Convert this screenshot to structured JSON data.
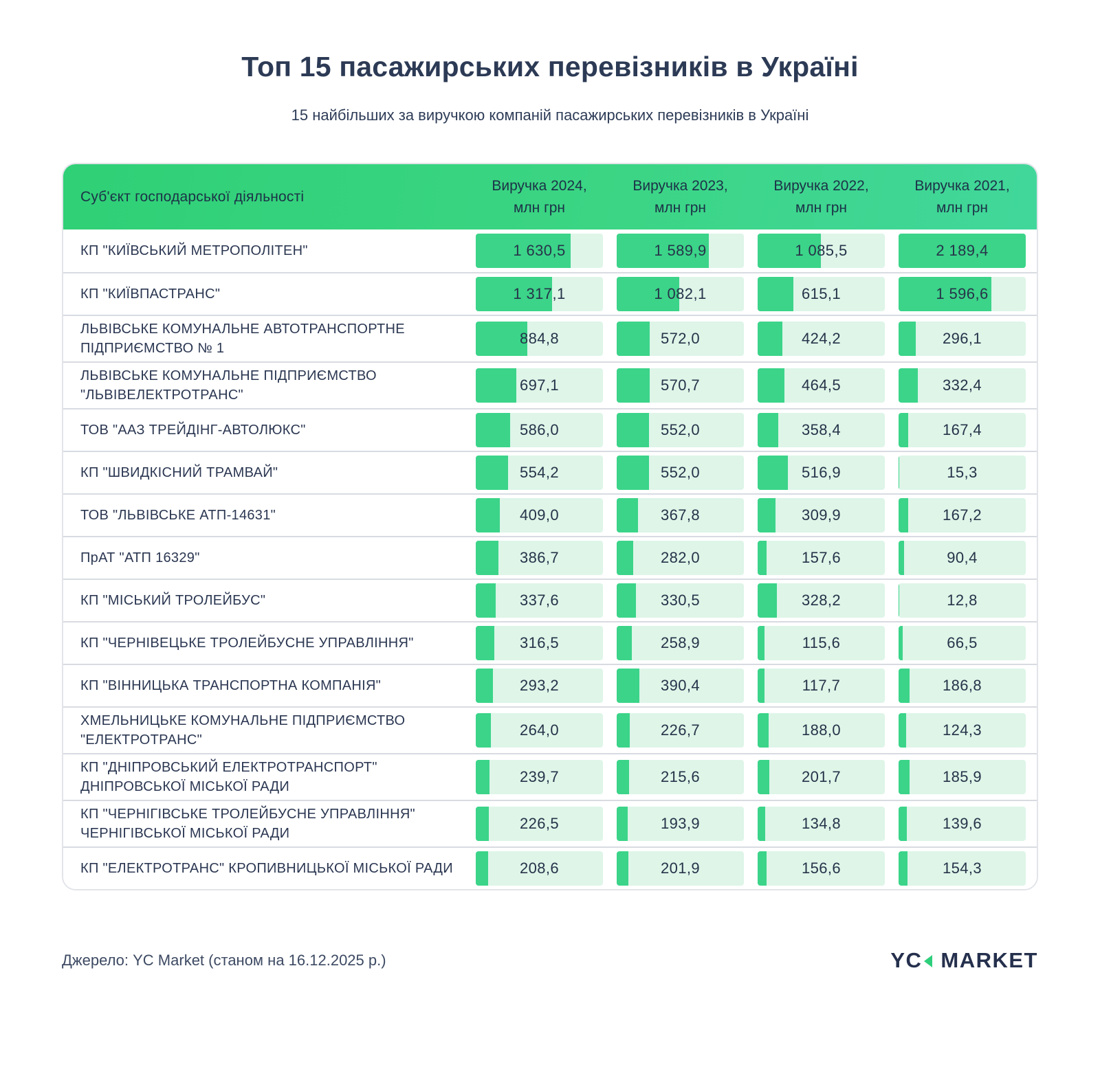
{
  "title": "Топ 15 пасажирських перевізників в Україні",
  "subtitle": "15 найбільших за виручкою компаній пасажирських перевізників в Україні",
  "table": {
    "name_header": "Суб'єкт господарської діяльності",
    "year_headers": [
      {
        "line1": "Виручка 2024,",
        "line2": "млн грн"
      },
      {
        "line1": "Виручка 2023,",
        "line2": "млн грн"
      },
      {
        "line1": "Виручка 2022,",
        "line2": "млн грн"
      },
      {
        "line1": "Виручка 2021,",
        "line2": "млн грн"
      }
    ]
  },
  "chart_data": {
    "type": "table",
    "title": "Топ 15 пасажирських перевізників в Україні",
    "subtitle": "15 найбільших за виручкою компаній пасажирських перевізників в Україні",
    "value_columns": [
      "Виручка 2024, млн грн",
      "Виручка 2023, млн грн",
      "Виручка 2022, млн грн",
      "Виручка 2021, млн грн"
    ],
    "bar_scale_max": 2189.4,
    "rows": [
      {
        "name": "КП \"КИЇВСЬКИЙ МЕТРОПОЛІТЕН\"",
        "values": [
          1630.5,
          1589.9,
          1085.5,
          2189.4
        ]
      },
      {
        "name": "КП \"КИЇВПАСТРАНС\"",
        "values": [
          1317.1,
          1082.1,
          615.1,
          1596.6
        ]
      },
      {
        "name": "ЛЬВІВСЬКЕ КОМУНАЛЬНЕ АВТОТРАНСПОРТНЕ ПІДПРИЄМСТВО № 1",
        "values": [
          884.8,
          572.0,
          424.2,
          296.1
        ]
      },
      {
        "name": "ЛЬВІВСЬКЕ КОМУНАЛЬНЕ ПІДПРИЄМСТВО \"ЛЬВІВЕЛЕКТРОТРАНС\"",
        "values": [
          697.1,
          570.7,
          464.5,
          332.4
        ]
      },
      {
        "name": "ТОВ \"ААЗ ТРЕЙДІНГ-АВТОЛЮКС\"",
        "values": [
          586.0,
          552.0,
          358.4,
          167.4
        ]
      },
      {
        "name": "КП \"ШВИДКІСНИЙ ТРАМВАЙ\"",
        "values": [
          554.2,
          552.0,
          516.9,
          15.3
        ]
      },
      {
        "name": "ТОВ \"ЛЬВІВСЬКЕ АТП-14631\"",
        "values": [
          409.0,
          367.8,
          309.9,
          167.2
        ]
      },
      {
        "name": "ПрАТ \"АТП 16329\"",
        "values": [
          386.7,
          282.0,
          157.6,
          90.4
        ]
      },
      {
        "name": "КП \"МІСЬКИЙ ТРОЛЕЙБУС\"",
        "values": [
          337.6,
          330.5,
          328.2,
          12.8
        ]
      },
      {
        "name": "КП \"ЧЕРНІВЕЦЬКЕ ТРОЛЕЙБУСНЕ УПРАВЛІННЯ\"",
        "values": [
          316.5,
          258.9,
          115.6,
          66.5
        ]
      },
      {
        "name": "КП \"ВІННИЦЬКА ТРАНСПОРТНА КОМПАНІЯ\"",
        "values": [
          293.2,
          390.4,
          117.7,
          186.8
        ]
      },
      {
        "name": "ХМЕЛЬНИЦЬКЕ КОМУНАЛЬНЕ ПІДПРИЄМСТВО \"ЕЛЕКТРОТРАНС\"",
        "values": [
          264.0,
          226.7,
          188.0,
          124.3
        ]
      },
      {
        "name": "КП \"ДНІПРОВСЬКИЙ ЕЛЕКТРОТРАНСПОРТ\" ДНІПРОВСЬКОЇ МІСЬКОЇ РАДИ",
        "values": [
          239.7,
          215.6,
          201.7,
          185.9
        ]
      },
      {
        "name": "КП \"ЧЕРНІГІВСЬКЕ ТРОЛЕЙБУСНЕ УПРАВЛІННЯ\" ЧЕРНІГІВСЬКОЇ МІСЬКОЇ РАДИ",
        "values": [
          226.5,
          193.9,
          134.8,
          139.6
        ]
      },
      {
        "name": "КП \"ЕЛЕКТРОТРАНС\" КРОПИВНИЦЬКОЇ МІСЬКОЇ РАДИ",
        "values": [
          208.6,
          201.9,
          156.6,
          154.3
        ]
      }
    ]
  },
  "footer": {
    "source": "Джерело: YC Market (станом на 16.12.2025 р.)"
  },
  "logo": {
    "part1": "YC",
    "part2": "MARKET",
    "triangle_icon": "left-triangle"
  },
  "colors": {
    "bar_fill": "#3bd489",
    "bar_track": "#def5e8",
    "header_gradient_start": "#2fd076",
    "header_gradient_end": "#41d79b",
    "text_navy": "#2b3752"
  }
}
